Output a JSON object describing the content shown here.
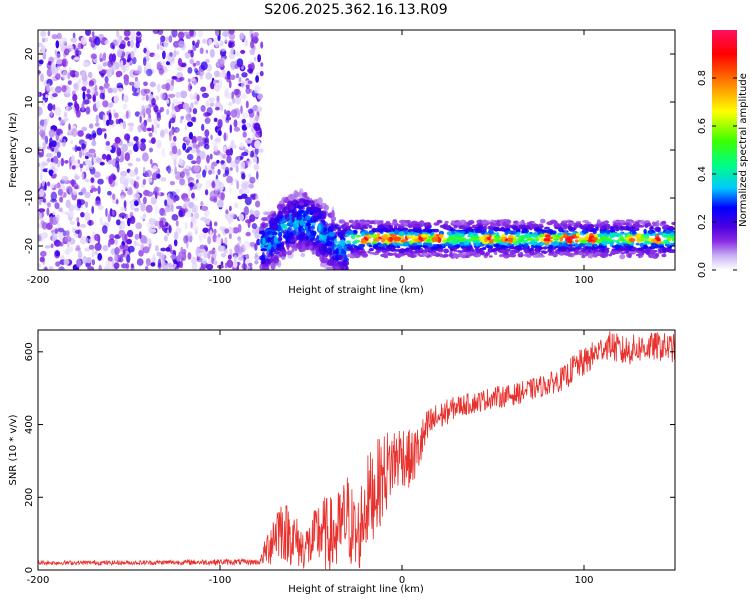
{
  "title": "S206.2025.362.16.13.R09",
  "chart_data": [
    {
      "type": "heatmap",
      "xlabel": "Height of straight line (km)",
      "ylabel": "Frequency (Hz)",
      "xlim": [
        -200,
        150
      ],
      "ylim": [
        -25,
        25
      ],
      "xticks": [
        -200,
        -100,
        0,
        100
      ],
      "yticks": [
        -20,
        -10,
        0,
        10,
        20
      ],
      "colorbar": {
        "label": "Normalized spectral amplitude",
        "range": [
          0,
          1
        ],
        "ticks": [
          "0.0",
          "0.2",
          "0.4",
          "0.6",
          "0.8"
        ],
        "colormap": [
          "#ffffff",
          "#c8b0f5",
          "#8a2be2",
          "#4b00e0",
          "#0000ff",
          "#00c8ff",
          "#00ff80",
          "#40ff00",
          "#ffff00",
          "#ff8000",
          "#ff0000",
          "#ff1060"
        ]
      },
      "regions": [
        {
          "x_range": [
            -200,
            -77
          ],
          "y_range": [
            -25,
            25
          ],
          "description_level": 0.12,
          "pattern": "scattered"
        },
        {
          "x_range": [
            -77,
            -30
          ],
          "y_range": [
            -24,
            -12
          ],
          "description_level": 0.2,
          "pattern": "cluster"
        },
        {
          "x_range": [
            -30,
            150
          ],
          "y_center": -18.5,
          "y_halfwidth": 1.5,
          "description_level": 0.6,
          "pattern": "band"
        }
      ],
      "band_hotspots_x": [
        -20,
        -12,
        -5,
        2,
        10,
        20,
        48,
        58,
        80,
        90,
        95,
        104,
        128,
        140
      ]
    },
    {
      "type": "line",
      "xlabel": "Height of straight line (km)",
      "ylabel": "SNR (10 * v/v)",
      "xlim": [
        -200,
        150
      ],
      "ylim": [
        0,
        660
      ],
      "xticks": [
        -200,
        -100,
        0,
        100
      ],
      "yticks": [
        0,
        200,
        400,
        600
      ],
      "color": "#e8302c",
      "series": [
        {
          "envelope_x": [
            -200,
            -150,
            -100,
            -78,
            -72,
            -68,
            -60,
            -55,
            -50,
            -45,
            -40,
            -35,
            -30,
            -25,
            -20,
            -15,
            -10,
            -5,
            0,
            5,
            10,
            15,
            20,
            30,
            40,
            50,
            60,
            70,
            80,
            90,
            95,
            100,
            105,
            110,
            115,
            120,
            130,
            140,
            150
          ],
          "envelope_mid": [
            20,
            20,
            22,
            22,
            80,
            120,
            90,
            60,
            70,
            110,
            90,
            100,
            150,
            80,
            180,
            220,
            260,
            300,
            320,
            300,
            340,
            400,
            420,
            450,
            460,
            475,
            480,
            495,
            510,
            530,
            560,
            570,
            590,
            610,
            620,
            600,
            610,
            615,
            610
          ],
          "envelope_amp": [
            6,
            6,
            8,
            8,
            70,
            90,
            80,
            60,
            70,
            100,
            110,
            120,
            120,
            120,
            130,
            130,
            120,
            100,
            90,
            80,
            70,
            50,
            40,
            30,
            30,
            30,
            30,
            30,
            30,
            35,
            40,
            40,
            40,
            35,
            40,
            45,
            40,
            40,
            40
          ]
        }
      ]
    }
  ]
}
